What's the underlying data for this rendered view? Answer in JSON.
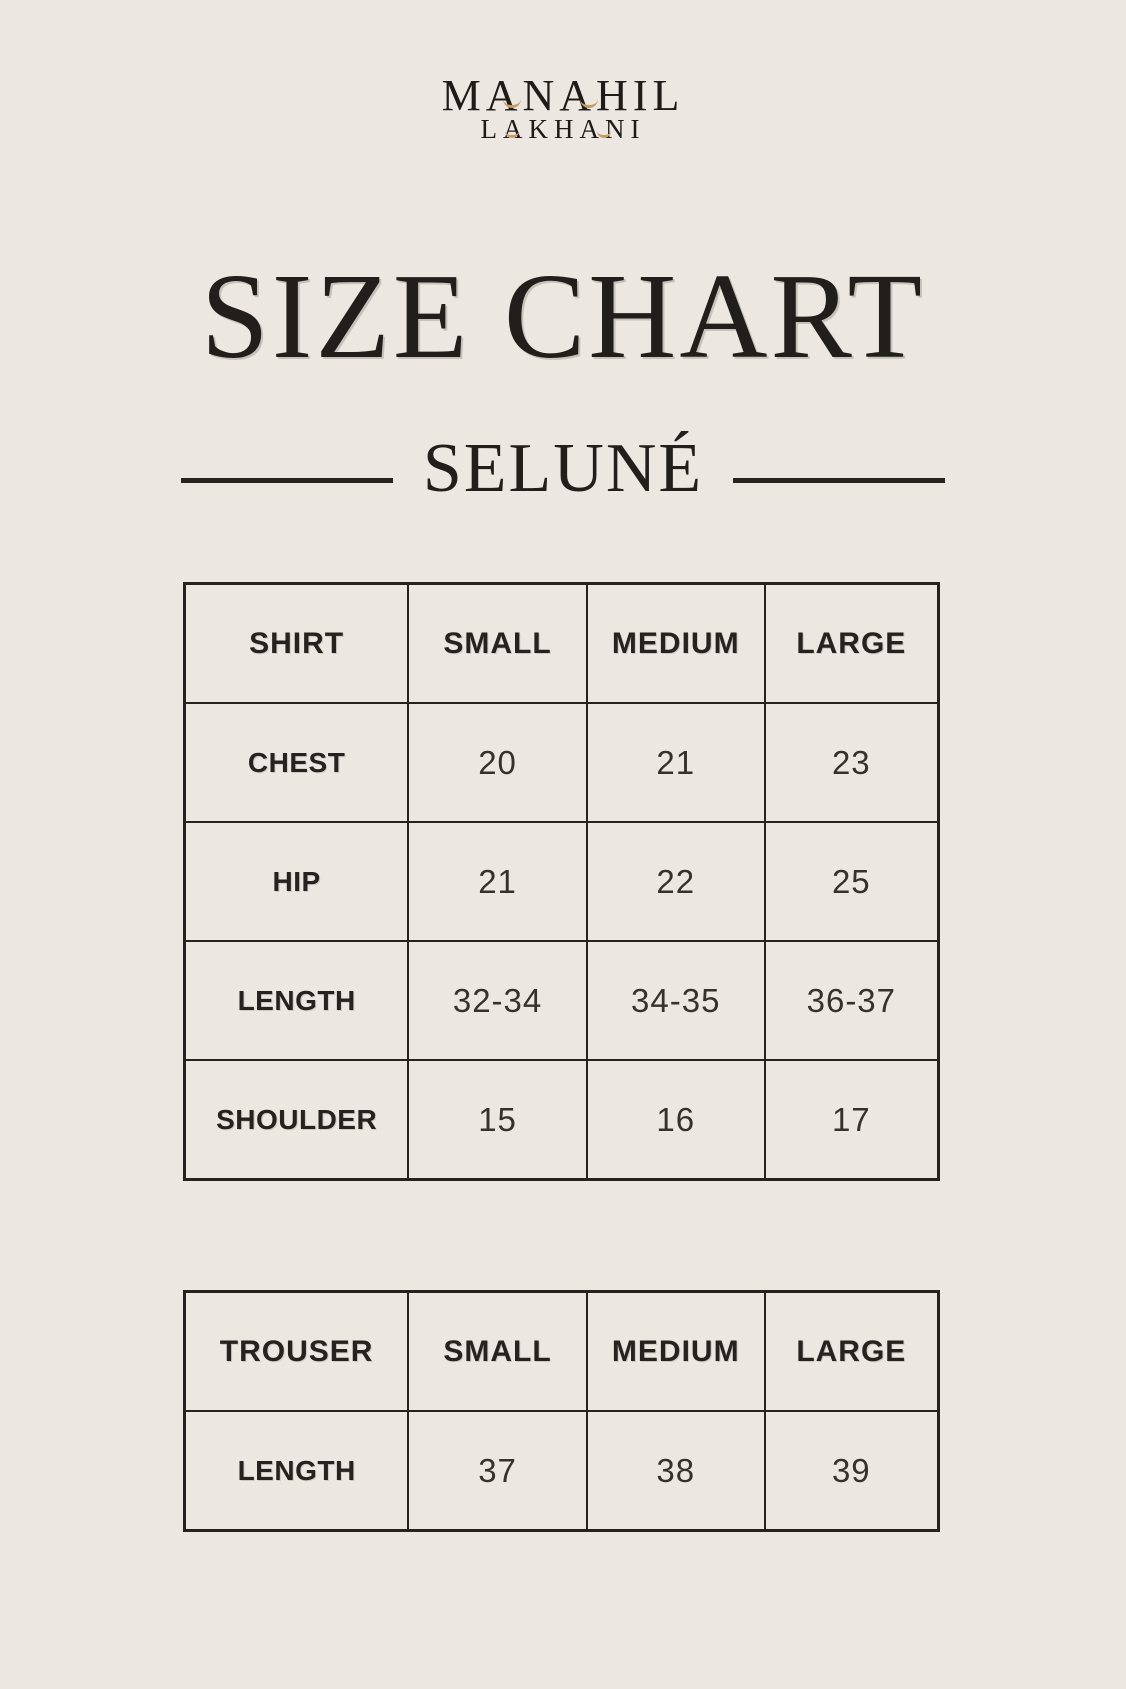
{
  "page": {
    "background": "#ECE7E0",
    "text_color": "#26221F",
    "accent_gold": "#C59E67"
  },
  "brand": {
    "line1": "MANAHIL",
    "line2": "LAKHANI"
  },
  "title": "SIZE CHART",
  "subtitle": "SELUNÉ",
  "tables": [
    {
      "name": "shirt",
      "headers": [
        "SHIRT",
        "SMALL",
        "MEDIUM",
        "LARGE"
      ],
      "rows": [
        {
          "label": "CHEST",
          "values": [
            "20",
            "21",
            "23"
          ]
        },
        {
          "label": "HIP",
          "values": [
            "21",
            "22",
            "25"
          ]
        },
        {
          "label": "LENGTH",
          "values": [
            "32-34",
            "34-35",
            "36-37"
          ]
        },
        {
          "label": "SHOULDER",
          "values": [
            "15",
            "16",
            "17"
          ]
        }
      ]
    },
    {
      "name": "trouser",
      "headers": [
        "TROUSER",
        "SMALL",
        "MEDIUM",
        "LARGE"
      ],
      "rows": [
        {
          "label": "LENGTH",
          "values": [
            "37",
            "38",
            "39"
          ]
        }
      ]
    }
  ]
}
